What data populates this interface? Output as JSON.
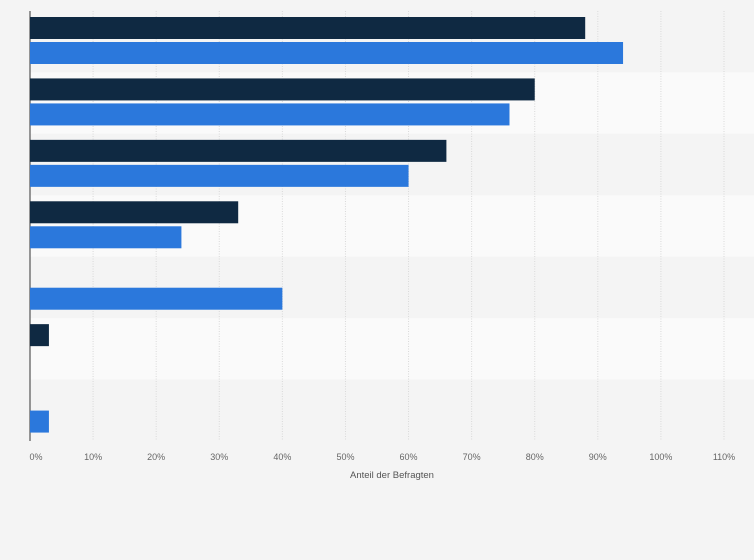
{
  "chart_data": {
    "type": "bar",
    "orientation": "horizontal",
    "title": "",
    "xlabel": "Anteil der Befragten",
    "ylabel": "",
    "xlim": [
      0,
      110
    ],
    "x_tick_labels": [
      "0%",
      "10%",
      "20%",
      "30%",
      "40%",
      "50%",
      "60%",
      "70%",
      "80%",
      "90%",
      "100%",
      "110%"
    ],
    "grid": true,
    "legend": "none",
    "categories": [
      "",
      "",
      "",
      "",
      "",
      "",
      ""
    ],
    "series": [
      {
        "color": "#0f2942",
        "values": [
          88,
          80,
          66,
          33,
          null,
          3,
          null
        ]
      },
      {
        "color": "#2b78dc",
        "values": [
          94,
          76,
          60,
          24,
          40,
          null,
          3
        ]
      }
    ]
  }
}
